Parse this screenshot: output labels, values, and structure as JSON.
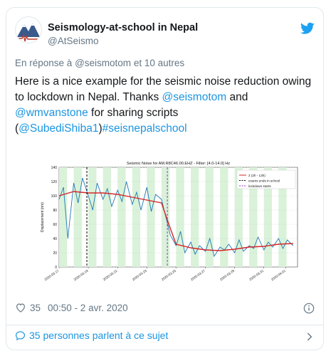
{
  "tweet": {
    "display_name": "Seismology-at-school in Nepal",
    "handle": "@AtSeismo",
    "reply_prefix": "En réponse à",
    "reply_to": "@seismotom",
    "reply_suffix": "et 10 autres",
    "text_parts": [
      {
        "t": "Here is a nice example for the seismic noise reduction owing to lockdown in Nepal. Thanks ",
        "link": false
      },
      {
        "t": "@seismotom",
        "link": true
      },
      {
        "t": " and ",
        "link": false
      },
      {
        "t": "@wmvanstone",
        "link": true
      },
      {
        "t": " for sharing scripts (",
        "link": false
      },
      {
        "t": "@SubediShiba1",
        "link": true
      },
      {
        "t": ")",
        "link": false
      },
      {
        "t": "#seisnepalschool",
        "link": true
      }
    ],
    "likes": "35",
    "timestamp": "00:50 - 2 avr. 2020",
    "footer_text": "35 personnes parlent à ce sujet",
    "icons": {
      "avatar": "nepal-seismology-logo",
      "bird": "twitter-bird-icon",
      "like": "heart-icon",
      "info": "info-icon",
      "footer": "comment-bubble-icon",
      "chevron": "chevron-right-icon"
    }
  },
  "colors": {
    "link": "#1b95e0",
    "muted": "#657786",
    "border": "#e1e8ed",
    "series_noise": "#1f77b4",
    "series_trend": "#d62728",
    "exams": "#000000",
    "lockdown": "#9b30c8",
    "shade": "#d9f2d9"
  },
  "chart_data": {
    "type": "line",
    "title": "Seismic Noise for AM.R8C46.00.EHZ - Filter: [4.0-14.0] Hz",
    "ylabel": "Displacement (nm)",
    "xlabel": "",
    "ylim": [
      0,
      140
    ],
    "yticks": [
      0,
      20,
      40,
      60,
      80,
      100,
      120,
      140
    ],
    "xlim": [
      0,
      16.3
    ],
    "xtick_labels": [
      "2020-03-17",
      "2020-03-19",
      "2020-03-21",
      "2020-03-23",
      "2020-03-25",
      "2020-03-27",
      "2020-03-29",
      "2020-03-31",
      "2020-04-01"
    ],
    "xtick_positions": [
      0,
      2,
      4,
      6,
      8,
      10,
      12,
      14,
      15.5
    ],
    "grid": true,
    "legend": {
      "position": "top-right",
      "entries": [
        {
          "label": "2 (2h - 13h)",
          "style": "solid",
          "color": "#d62728"
        },
        {
          "label": "exams ends in school",
          "style": "dashed",
          "color": "#000000"
        },
        {
          "label": "lockdown starts",
          "style": "dashed",
          "color": "#9b30c8"
        }
      ]
    },
    "vlines": [
      {
        "x": 1.9,
        "name": "exams ends in school"
      },
      {
        "x": 7.4,
        "name": "lockdown starts"
      }
    ],
    "shaded_days": [
      0,
      2,
      4,
      6,
      8,
      10,
      12,
      14
    ],
    "series": [
      {
        "name": "2 (2h - 13h)",
        "color": "#d62728",
        "x": [
          0,
          1,
          2,
          3,
          4,
          5,
          6,
          7,
          7.5,
          8,
          9,
          10,
          11,
          12,
          13,
          14,
          15,
          16
        ],
        "values": [
          100,
          106,
          104,
          104,
          102,
          98,
          94,
          90,
          60,
          32,
          27,
          24,
          23,
          25,
          28,
          29,
          32,
          33
        ]
      },
      {
        "color": "#1f77b4",
        "x": [
          0,
          0.3,
          0.6,
          1,
          1.3,
          1.6,
          2,
          2.3,
          2.6,
          3,
          3.3,
          3.6,
          4,
          4.3,
          4.6,
          5,
          5.3,
          5.6,
          6,
          6.3,
          6.6,
          7,
          7.3,
          7.6,
          8,
          8.3,
          8.6,
          9,
          9.3,
          9.6,
          10,
          10.3,
          10.6,
          11,
          11.3,
          11.6,
          12,
          12.3,
          12.6,
          13,
          13.3,
          13.6,
          14,
          14.3,
          14.6,
          15,
          15.3,
          15.6,
          16
        ],
        "values": [
          95,
          112,
          40,
          118,
          90,
          125,
          100,
          80,
          118,
          95,
          110,
          85,
          108,
          92,
          120,
          88,
          105,
          80,
          112,
          78,
          102,
          95,
          70,
          45,
          30,
          50,
          20,
          35,
          18,
          30,
          22,
          40,
          15,
          28,
          24,
          32,
          20,
          38,
          22,
          30,
          26,
          42,
          24,
          35,
          28,
          40,
          26,
          38,
          30
        ]
      }
    ]
  }
}
